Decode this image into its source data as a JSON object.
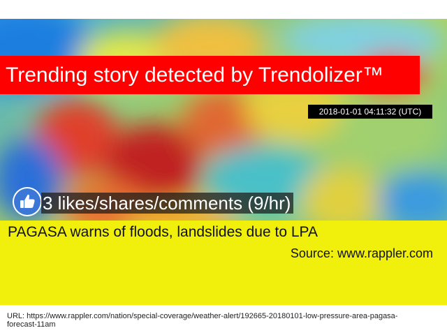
{
  "banner": {
    "text": "Trending story detected by Trendolizer™"
  },
  "timestamp": {
    "text": "2018-01-01 04:11:32 (UTC)"
  },
  "engagement": {
    "text": "3 likes/shares/comments (9/hr)"
  },
  "story": {
    "headline": "PAGASA warns of floods, landslides due to LPA",
    "source": "Source: www.rappler.com"
  },
  "url": {
    "text": "URL: https://www.rappler.com/nation/special-coverage/weather-alert/192665-20180101-low-pressure-area-pagasa-forecast-11am"
  },
  "icons": {
    "engagement": "thumbs-up-icon"
  },
  "colors": {
    "banner_bg": "#ff0000",
    "story_panel_bg": "#f0f00c",
    "like_icon_bg": "#3b77d6",
    "timestamp_bg": "#000000"
  }
}
